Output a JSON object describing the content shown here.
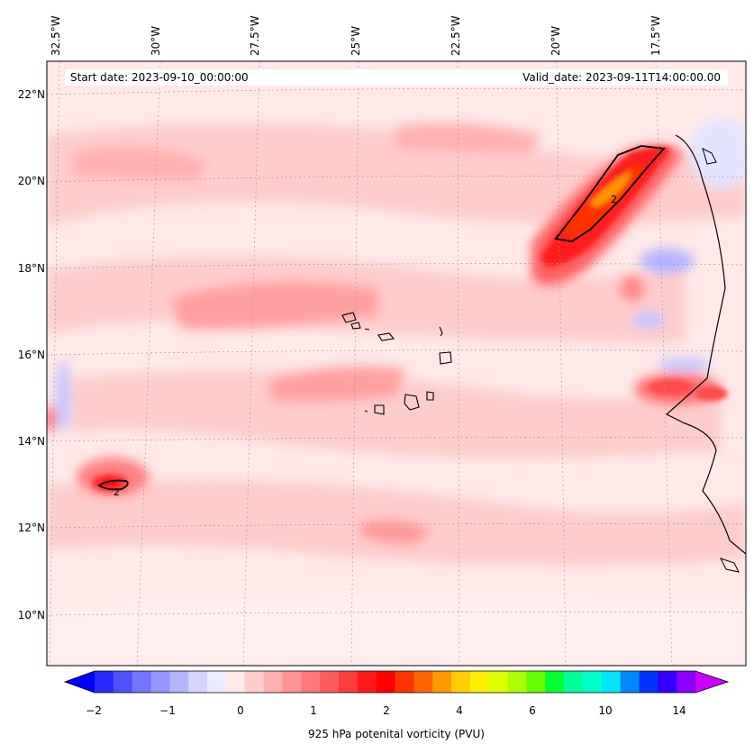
{
  "map": {
    "longitude_labels": [
      "32.5°W",
      "30°W",
      "27.5°W",
      "25°W",
      "22.5°W",
      "20°W",
      "17.5°W"
    ],
    "latitude_labels": [
      "22°N",
      "20°N",
      "18°N",
      "16°N",
      "14°N",
      "12°N",
      "10°N"
    ],
    "start_date": "Start date: 2023-09-10_00:00:00",
    "valid_date": "Valid_date: 2023-09-11T14:00:00.00",
    "contour_labels": [
      "2",
      "2"
    ]
  },
  "colorbar": {
    "ticks": [
      "−2",
      "−1",
      "0",
      "1",
      "2",
      "4",
      "6",
      "10",
      "14"
    ],
    "label": "925 hPa potenital vorticity (PVU)",
    "colors": [
      "#0000ff",
      "#2a2aff",
      "#5050ff",
      "#7474ff",
      "#9494ff",
      "#b4b4ff",
      "#d4d4ff",
      "#ececff",
      "#ffe8e8",
      "#ffcccc",
      "#ffb0b0",
      "#ff9494",
      "#ff7878",
      "#ff5c5c",
      "#ff3c3c",
      "#ff1a1a",
      "#ff0000",
      "#ff3300",
      "#ff6600",
      "#ff9900",
      "#ffcc00",
      "#ffee00",
      "#ddff00",
      "#aaff00",
      "#66ff00",
      "#00ff33",
      "#00ff99",
      "#00ffcc",
      "#00e5ff",
      "#0088ff",
      "#0033ff",
      "#3300ff",
      "#8800ff",
      "#cc00ff"
    ]
  },
  "colors": {
    "background": "#ffe8e8",
    "coast": "#000000"
  }
}
